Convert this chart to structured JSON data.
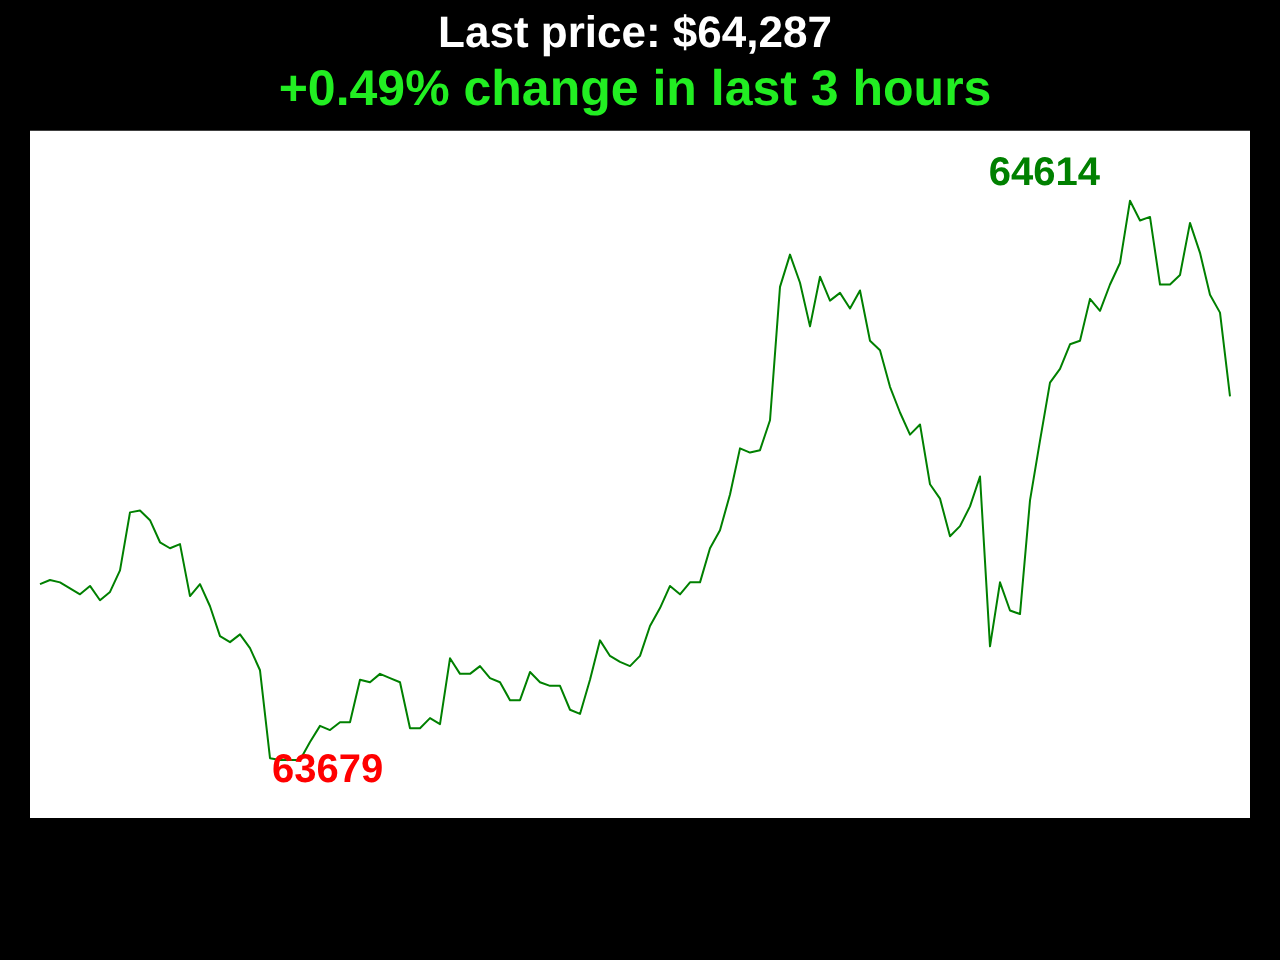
{
  "chart_data": {
    "type": "line",
    "title": "Last price: $64,287",
    "subtitle": "+0.49% change in last 3 hours",
    "categories": [
      null,
      null,
      null,
      null,
      null,
      null,
      null,
      null,
      null,
      null,
      null,
      null,
      null,
      null,
      null,
      null,
      null,
      null,
      null,
      null,
      null,
      null,
      null,
      null,
      null,
      null,
      null,
      null,
      null,
      null,
      null,
      null,
      null,
      null,
      null,
      null,
      null,
      null,
      null,
      null,
      null,
      null,
      null,
      null,
      null,
      null,
      null,
      null,
      null,
      null,
      null,
      null,
      null,
      null,
      null,
      null,
      null,
      null,
      null,
      null,
      null,
      null,
      null,
      null,
      null,
      null,
      null,
      null,
      null,
      null,
      null,
      null,
      null,
      null,
      null,
      null,
      null,
      null,
      null,
      null,
      null,
      null,
      null,
      null,
      null,
      null,
      null,
      null,
      null,
      null,
      null,
      null,
      null,
      null,
      null,
      null,
      null,
      null,
      null,
      null,
      null,
      null,
      null,
      null,
      null,
      null,
      null,
      null,
      null,
      null,
      null,
      null,
      null,
      null,
      null,
      null,
      null,
      null,
      null,
      null
    ],
    "series": [
      {
        "color": "#008000",
        "values": [
          63973,
          63980,
          63976,
          63966,
          63956,
          63970,
          63946,
          63960,
          63996,
          64093,
          64096,
          64080,
          64043,
          64033,
          64040,
          63953,
          63973,
          63936,
          63886,
          63876,
          63889,
          63866,
          63829,
          63682,
          63679,
          63679,
          63679,
          63709,
          63736,
          63729,
          63742,
          63742,
          63813,
          63809,
          63823,
          63816,
          63809,
          63732,
          63732,
          63749,
          63739,
          63849,
          63823,
          63823,
          63836,
          63816,
          63809,
          63779,
          63779,
          63826,
          63809,
          63803,
          63803,
          63763,
          63756,
          63813,
          63879,
          63853,
          63843,
          63836,
          63853,
          63903,
          63933,
          63970,
          63956,
          63976,
          63976,
          64033,
          64063,
          64123,
          64200,
          64193,
          64197,
          64247,
          64470,
          64524,
          64477,
          64404,
          64487,
          64447,
          64460,
          64434,
          64464,
          64380,
          64364,
          64303,
          64260,
          64223,
          64240,
          64140,
          64116,
          64053,
          64070,
          64103,
          64153,
          63869,
          63976,
          63929,
          63923,
          64113,
          64213,
          64310,
          64333,
          64374,
          64380,
          64450,
          64430,
          64474,
          64510,
          64614,
          64581,
          64587,
          64474,
          64474,
          64490,
          64577,
          64527,
          64457,
          64427,
          64287
        ],
        "value_labels": [
          null,
          null,
          null,
          null,
          null,
          null,
          null,
          null,
          null,
          null,
          null,
          null,
          null,
          null,
          null,
          null,
          null,
          null,
          null,
          null,
          null,
          null,
          null,
          null,
          "63679",
          null,
          null,
          null,
          null,
          null,
          null,
          null,
          null,
          null,
          null,
          null,
          null,
          null,
          null,
          null,
          null,
          null,
          null,
          null,
          null,
          null,
          null,
          null,
          null,
          null,
          null,
          null,
          null,
          null,
          null,
          null,
          null,
          null,
          null,
          null,
          null,
          null,
          null,
          null,
          null,
          null,
          null,
          null,
          null,
          null,
          null,
          null,
          null,
          null,
          null,
          null,
          null,
          null,
          null,
          null,
          null,
          null,
          null,
          null,
          null,
          null,
          null,
          null,
          null,
          null,
          null,
          null,
          null,
          null,
          null,
          null,
          null,
          null,
          null,
          null,
          null,
          null,
          null,
          null,
          null,
          null,
          null,
          null,
          null,
          "64614",
          null,
          null,
          null,
          null,
          null,
          null,
          null,
          null,
          null,
          null
        ]
      }
    ],
    "ylim": [
      63582,
      64731
    ],
    "tick_labels": false,
    "marker": "none"
  }
}
